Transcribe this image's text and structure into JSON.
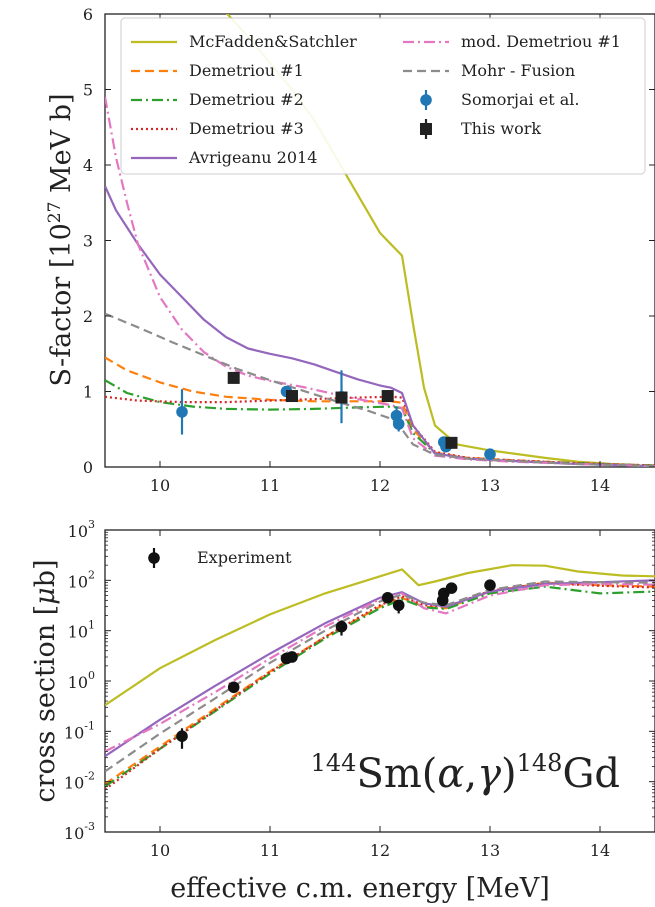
{
  "chart_data": [
    {
      "type": "line",
      "ylabel_main": "S-factor [10",
      "ylabel_sup": "27",
      "ylabel_tail": " MeV b]",
      "xlim": [
        9.5,
        14.5
      ],
      "ylim": [
        0,
        6
      ],
      "x_ticks": [
        10,
        11,
        12,
        13,
        14
      ],
      "x_tick_labels": [
        "10",
        "11",
        "12",
        "13",
        "14"
      ],
      "y_ticks": [
        0,
        1,
        2,
        3,
        4,
        5,
        6
      ],
      "y_tick_labels": [
        "0",
        "1",
        "2",
        "3",
        "4",
        "5",
        "6"
      ],
      "legend_placement": "top",
      "series": [
        {
          "name": "McFadden&Satchler",
          "color": "#bcbd22",
          "style": "solid",
          "x": [
            10.55,
            10.8,
            11.0,
            11.2,
            11.4,
            11.6,
            11.8,
            12.0,
            12.1,
            12.2,
            12.25,
            12.3,
            12.4,
            12.5,
            12.7,
            13.0,
            13.2,
            13.5,
            13.8,
            14.2,
            14.5
          ],
          "y": [
            6.1,
            5.7,
            5.35,
            5.0,
            4.6,
            4.1,
            3.6,
            3.1,
            2.95,
            2.8,
            2.35,
            1.9,
            1.05,
            0.55,
            0.3,
            0.22,
            0.18,
            0.12,
            0.07,
            0.03,
            0.01
          ]
        },
        {
          "name": "Demetriou #1",
          "color": "#ff7f0e",
          "style": "dashed",
          "x": [
            9.5,
            9.7,
            10.0,
            10.3,
            10.6,
            11.0,
            11.4,
            11.8,
            12.1,
            12.2,
            12.3,
            12.5,
            12.8,
            13.2,
            13.8,
            14.5
          ],
          "y": [
            1.45,
            1.28,
            1.12,
            1.0,
            0.93,
            0.89,
            0.87,
            0.87,
            0.87,
            0.85,
            0.5,
            0.19,
            0.12,
            0.09,
            0.05,
            0.02
          ]
        },
        {
          "name": "Demetriou #2",
          "color": "#2ca02c",
          "style": "dashdot",
          "x": [
            9.5,
            9.7,
            10.0,
            10.3,
            10.6,
            11.0,
            11.4,
            11.8,
            12.1,
            12.2,
            12.3,
            12.5,
            12.8,
            13.2,
            13.8,
            14.5
          ],
          "y": [
            1.15,
            0.98,
            0.86,
            0.8,
            0.77,
            0.76,
            0.77,
            0.79,
            0.8,
            0.78,
            0.45,
            0.18,
            0.11,
            0.08,
            0.05,
            0.02
          ]
        },
        {
          "name": "Demetriou #3",
          "color": "#d62728",
          "style": "dotted",
          "x": [
            9.5,
            9.8,
            10.2,
            10.6,
            11.0,
            11.4,
            11.8,
            12.1,
            12.2,
            12.3,
            12.5,
            12.8,
            13.2,
            13.8,
            14.5
          ],
          "y": [
            0.93,
            0.88,
            0.86,
            0.86,
            0.88,
            0.9,
            0.92,
            0.93,
            0.92,
            0.55,
            0.2,
            0.12,
            0.09,
            0.05,
            0.02
          ]
        },
        {
          "name": "Avrigeanu 2014",
          "color": "#9467bd",
          "style": "solid",
          "x": [
            9.5,
            9.6,
            9.8,
            10.0,
            10.2,
            10.4,
            10.6,
            10.8,
            11.0,
            11.2,
            11.4,
            11.6,
            11.8,
            12.0,
            12.1,
            12.2,
            12.3,
            12.5,
            12.8,
            13.2,
            13.8,
            14.5
          ],
          "y": [
            3.72,
            3.4,
            2.95,
            2.55,
            2.25,
            1.95,
            1.72,
            1.57,
            1.5,
            1.44,
            1.36,
            1.26,
            1.16,
            1.08,
            1.05,
            0.98,
            0.55,
            0.18,
            0.11,
            0.08,
            0.04,
            0.01
          ]
        },
        {
          "name": "mod. Demetriou #1",
          "color": "#e377c2",
          "style": "dashdot",
          "x": [
            9.5,
            9.6,
            9.7,
            9.8,
            10.0,
            10.2,
            10.4,
            10.6,
            10.8,
            11.0,
            11.3,
            11.6,
            11.9,
            12.1,
            12.2,
            12.3,
            12.5,
            12.8,
            13.2,
            13.8,
            14.5
          ],
          "y": [
            4.9,
            4.1,
            3.5,
            2.95,
            2.25,
            1.82,
            1.52,
            1.33,
            1.21,
            1.14,
            1.06,
            0.96,
            0.87,
            0.82,
            0.78,
            0.38,
            0.15,
            0.1,
            0.07,
            0.04,
            0.01
          ]
        },
        {
          "name": "Mohr - Fusion",
          "color": "#8c8c8c",
          "style": "dashed",
          "x": [
            9.5,
            9.8,
            10.1,
            10.4,
            10.7,
            11.0,
            11.3,
            11.6,
            11.9,
            12.1,
            12.2,
            12.3,
            12.5,
            12.8,
            13.2,
            13.8,
            14.5
          ],
          "y": [
            2.03,
            1.85,
            1.66,
            1.48,
            1.3,
            1.15,
            1.01,
            0.87,
            0.74,
            0.64,
            0.5,
            0.3,
            0.16,
            0.11,
            0.08,
            0.04,
            0.01
          ]
        }
      ],
      "points": [
        {
          "name": "Somorjai et al.",
          "color": "#1f77b4",
          "marker": "circle",
          "x": [
            10.2,
            11.15,
            11.65,
            12.15,
            12.17,
            12.58,
            12.6,
            13.0
          ],
          "y": [
            0.73,
            1.0,
            0.93,
            0.68,
            0.57,
            0.33,
            0.27,
            0.17
          ],
          "err": [
            0.3,
            0.06,
            0.35,
            0.12,
            0.1,
            0.05,
            0.04,
            0.03
          ]
        },
        {
          "name": "This work",
          "color": "#222222",
          "marker": "square",
          "x": [
            10.67,
            11.2,
            11.65,
            12.07,
            12.65
          ],
          "y": [
            1.18,
            0.94,
            0.92,
            0.94,
            0.32
          ],
          "err": [
            0.05,
            0.05,
            0.06,
            0.06,
            0.03
          ]
        }
      ]
    },
    {
      "type": "line",
      "ylabel": "cross section [",
      "ylabel_mu": "μ",
      "ylabel_tail": "b]",
      "xlabel": "effective c.m. energy [MeV]",
      "annotation": "",
      "annotation_parts": [
        "144",
        "Sm(",
        "α",
        ",",
        "γ",
        ")",
        "148",
        "Gd"
      ],
      "xlim": [
        9.5,
        14.5
      ],
      "ylim_log10": [
        -3,
        3
      ],
      "y_scale": "log",
      "x_ticks": [
        10,
        11,
        12,
        13,
        14
      ],
      "x_tick_labels": [
        "10",
        "11",
        "12",
        "13",
        "14"
      ],
      "y_tick_exponents": [
        -3,
        -2,
        -1,
        0,
        1,
        2,
        3
      ],
      "y_tick_labels": [
        "-3",
        "-2",
        "-1",
        "0",
        "1",
        "2",
        "3"
      ],
      "y_tick_base": "10",
      "legend_placement": "top-left",
      "series": [
        {
          "color": "#bcbd22",
          "style": "solid",
          "x": [
            9.5,
            10.0,
            10.5,
            11.0,
            11.5,
            12.0,
            12.2,
            12.35,
            12.5,
            12.8,
            13.2,
            13.5,
            13.8,
            14.2,
            14.5
          ],
          "y": [
            0.33,
            1.8,
            6.5,
            21,
            55,
            120,
            165,
            80,
            95,
            140,
            200,
            195,
            150,
            125,
            120
          ]
        },
        {
          "color": "#ff7f0e",
          "style": "dashed",
          "x": [
            9.5,
            10.0,
            10.5,
            11.0,
            11.5,
            12.0,
            12.2,
            12.4,
            12.6,
            13.0,
            13.5,
            14.0,
            14.5
          ],
          "y": [
            0.009,
            0.05,
            0.28,
            1.55,
            7.5,
            30,
            45,
            30,
            28,
            60,
            90,
            80,
            75
          ]
        },
        {
          "color": "#2ca02c",
          "style": "dashdot",
          "x": [
            9.5,
            10.0,
            10.5,
            11.0,
            11.5,
            12.0,
            12.2,
            12.4,
            12.6,
            13.0,
            13.5,
            14.0,
            14.5
          ],
          "y": [
            0.008,
            0.045,
            0.25,
            1.4,
            7,
            28,
            42,
            29,
            27,
            55,
            75,
            55,
            60
          ]
        },
        {
          "color": "#d62728",
          "style": "dotted",
          "x": [
            9.5,
            10.0,
            10.5,
            11.0,
            11.5,
            12.0,
            12.2,
            12.4,
            12.6,
            13.0,
            13.5,
            14.0,
            14.5
          ],
          "y": [
            0.007,
            0.045,
            0.26,
            1.5,
            7.5,
            32,
            48,
            32,
            30,
            62,
            88,
            78,
            72
          ]
        },
        {
          "color": "#9467bd",
          "style": "solid",
          "x": [
            9.5,
            10.0,
            10.5,
            11.0,
            11.5,
            12.0,
            12.2,
            12.4,
            12.6,
            13.0,
            13.5,
            14.0,
            14.5
          ],
          "y": [
            0.032,
            0.17,
            0.8,
            3.5,
            14,
            45,
            58,
            35,
            30,
            60,
            85,
            92,
            100
          ]
        },
        {
          "color": "#e377c2",
          "style": "dashdot",
          "x": [
            9.5,
            10.0,
            10.5,
            11.0,
            11.5,
            12.0,
            12.2,
            12.4,
            12.6,
            13.0,
            13.5,
            14.0,
            14.5
          ],
          "y": [
            0.04,
            0.14,
            0.6,
            2.8,
            12,
            42,
            55,
            28,
            22,
            50,
            80,
            85,
            82
          ]
        },
        {
          "color": "#8c8c8c",
          "style": "dashed",
          "x": [
            9.5,
            10.0,
            10.5,
            11.0,
            11.5,
            12.0,
            12.2,
            12.4,
            12.6,
            13.0,
            13.5,
            14.0,
            14.5
          ],
          "y": [
            0.016,
            0.09,
            0.45,
            2.3,
            10,
            38,
            52,
            36,
            32,
            65,
            95,
            92,
            90
          ]
        }
      ],
      "points": [
        {
          "name": "Experiment",
          "color": "#111111",
          "marker": "circle",
          "x": [
            10.2,
            10.67,
            11.15,
            11.2,
            11.65,
            12.07,
            12.17,
            12.57,
            12.58,
            12.65,
            13.0
          ],
          "y": [
            0.08,
            0.75,
            2.8,
            3.0,
            12,
            45,
            32,
            40,
            55,
            70,
            80
          ],
          "err_lo": [
            0.035,
            0.1,
            0.3,
            0.3,
            4,
            5,
            10,
            5,
            5,
            7,
            8
          ],
          "err_hi": [
            0.035,
            0.1,
            0.3,
            0.3,
            4,
            5,
            8,
            5,
            5,
            7,
            8
          ]
        }
      ]
    }
  ]
}
